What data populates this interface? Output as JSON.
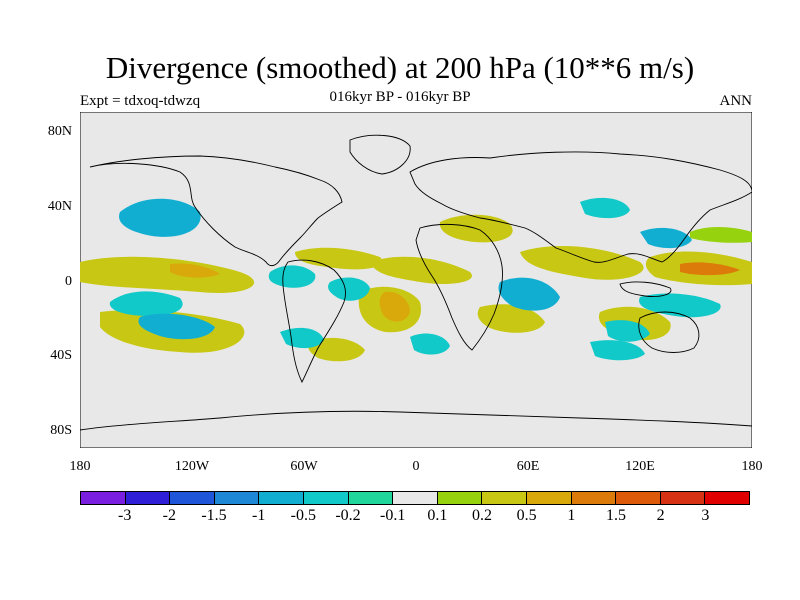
{
  "title": "Divergence (smoothed) at 200 hPa (10**6 m/s)",
  "subtitle": "016kyr BP - 016kyr BP",
  "experiment": "Expt = tdxoq-tdwzq",
  "period": "ANN",
  "lat_labels": [
    "80N",
    "40N",
    "0",
    "40S",
    "80S"
  ],
  "lon_labels": [
    "180",
    "120W",
    "60W",
    "0",
    "60E",
    "120E",
    "180"
  ],
  "colorbar": {
    "labels": [
      "-3",
      "-2",
      "-1.5",
      "-1",
      "-0.5",
      "-0.2",
      "-0.1",
      "0.1",
      "0.2",
      "0.5",
      "1",
      "1.5",
      "2",
      "3"
    ],
    "colors": [
      "#7a1fe0",
      "#2f1fd6",
      "#1f55d8",
      "#1e88d6",
      "#12aed2",
      "#10c9c8",
      "#20d69a",
      "#e8e8e8",
      "#96d20e",
      "#c8c814",
      "#d9a80a",
      "#dc7a0a",
      "#dc5a0a",
      "#d83214",
      "#e00000"
    ]
  },
  "map": {
    "background": "#e8e8e8",
    "positive_color": "#c8c814",
    "negative_color": "#12aed2"
  }
}
